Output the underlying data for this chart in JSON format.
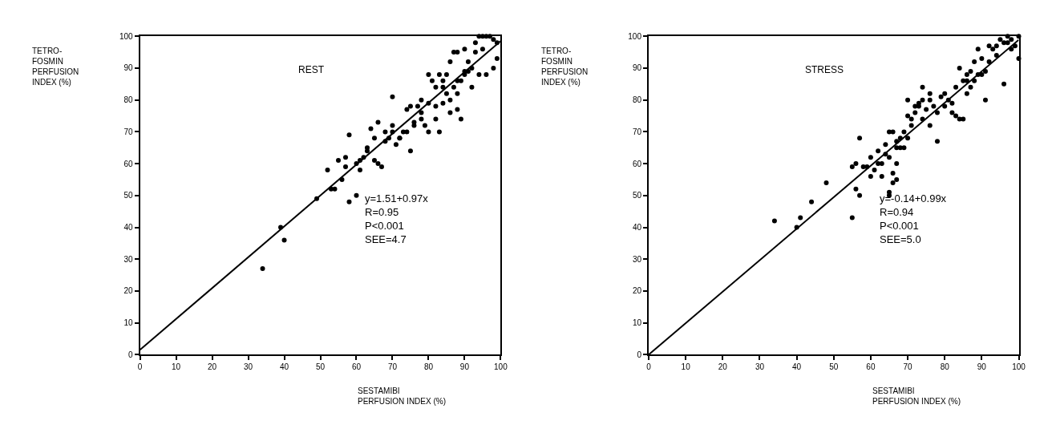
{
  "chart_data": [
    {
      "type": "scatter",
      "title": "REST",
      "xlabel": "SESTAMIBI\nPERFUSION INDEX (%)",
      "ylabel": "TETRO-\nFOSMIN\nPERFUSION\nINDEX (%)",
      "xlim": [
        0,
        100
      ],
      "ylim": [
        0,
        100
      ],
      "xticks": [
        0,
        10,
        20,
        30,
        40,
        50,
        60,
        70,
        80,
        90,
        100
      ],
      "yticks": [
        0,
        10,
        20,
        30,
        40,
        50,
        60,
        70,
        80,
        90,
        100
      ],
      "marker": "circle",
      "annotations": [
        "y=1.51+0.97x",
        "R=0.95",
        "P<0.001",
        "SEE=4.7"
      ],
      "series": [
        {
          "color": "#000000",
          "x": [
            34,
            39,
            40,
            49,
            53,
            58,
            60,
            55,
            52,
            57,
            58,
            61,
            63,
            65,
            66,
            67,
            68,
            69,
            70,
            71,
            72,
            73,
            74,
            75,
            76,
            77,
            78,
            79,
            80,
            70,
            64,
            62,
            66,
            68,
            74,
            76,
            78,
            80,
            81,
            82,
            83,
            84,
            85,
            86,
            87,
            88,
            89,
            90,
            91,
            92,
            86,
            87,
            88,
            90,
            91,
            93,
            94,
            95,
            96,
            97,
            98,
            99,
            96,
            94,
            85,
            84,
            82,
            80,
            78,
            72,
            70,
            65,
            63,
            60,
            56,
            54,
            61,
            57,
            82,
            86,
            84,
            88,
            89,
            92,
            75,
            83,
            88,
            90,
            93,
            95,
            98,
            99
          ],
          "values": [
            27,
            40,
            36,
            49,
            52,
            48,
            50,
            61,
            58,
            62,
            69,
            61,
            65,
            61,
            60,
            59,
            70,
            68,
            70,
            66,
            68,
            70,
            77,
            64,
            72,
            78,
            74,
            72,
            79,
            81,
            71,
            62,
            73,
            67,
            70,
            73,
            80,
            88,
            86,
            84,
            88,
            86,
            82,
            80,
            84,
            86,
            74,
            88,
            89,
            90,
            92,
            95,
            95,
            96,
            92,
            98,
            100,
            100,
            100,
            100,
            90,
            93,
            88,
            88,
            88,
            84,
            78,
            70,
            76,
            68,
            72,
            68,
            64,
            60,
            55,
            52,
            58,
            59,
            74,
            76,
            79,
            82,
            86,
            84,
            78,
            70,
            77,
            89,
            95,
            96,
            99,
            98
          ]
        },
        {
          "type": "line",
          "color": "#000000",
          "x": [
            0,
            100
          ],
          "values": [
            1.5,
            98.5
          ],
          "marker": "none",
          "line_style": "solid"
        }
      ]
    },
    {
      "type": "scatter",
      "title": "STRESS",
      "xlabel": "SESTAMIBI\nPERFUSION INDEX (%)",
      "ylabel": "TETRO-\nFOSMIN\nPERFUSION\nINDEX (%)",
      "xlim": [
        0,
        100
      ],
      "ylim": [
        0,
        100
      ],
      "xticks": [
        0,
        10,
        20,
        30,
        40,
        50,
        60,
        70,
        80,
        90,
        100
      ],
      "yticks": [
        0,
        10,
        20,
        30,
        40,
        50,
        60,
        70,
        80,
        90,
        100
      ],
      "marker": "circle",
      "annotations": [
        "y=-0.14+0.99x",
        "R=0.94",
        "P<0.001",
        "SEE=5.0"
      ],
      "series": [
        {
          "color": "#000000",
          "x": [
            34,
            40,
            41,
            44,
            48,
            55,
            56,
            57,
            55,
            56,
            57,
            58,
            59,
            60,
            61,
            62,
            63,
            63,
            64,
            65,
            65,
            65,
            66,
            66,
            67,
            67,
            68,
            64,
            65,
            66,
            67,
            68,
            69,
            70,
            70,
            71,
            72,
            72,
            73,
            74,
            74,
            75,
            76,
            76,
            77,
            78,
            78,
            80,
            80,
            81,
            82,
            82,
            83,
            83,
            84,
            85,
            84,
            85,
            86,
            86,
            87,
            88,
            88,
            89,
            90,
            90,
            89,
            91,
            92,
            93,
            94,
            95,
            96,
            97,
            98,
            99,
            100,
            100,
            96,
            91,
            92,
            94,
            97,
            98,
            87,
            86,
            79,
            76,
            74,
            69,
            70,
            71,
            73,
            60,
            62,
            67
          ],
          "values": [
            42,
            40,
            43,
            48,
            54,
            43,
            52,
            50,
            59,
            60,
            68,
            59,
            59,
            56,
            58,
            64,
            56,
            60,
            66,
            62,
            50,
            51,
            54,
            57,
            55,
            60,
            65,
            63,
            70,
            70,
            67,
            68,
            65,
            68,
            80,
            72,
            78,
            76,
            79,
            84,
            74,
            77,
            80,
            72,
            78,
            67,
            76,
            78,
            82,
            80,
            79,
            76,
            84,
            75,
            74,
            74,
            90,
            86,
            86,
            88,
            89,
            86,
            92,
            88,
            88,
            93,
            96,
            89,
            92,
            96,
            97,
            99,
            98,
            98,
            96,
            97,
            100,
            93,
            85,
            80,
            97,
            94,
            100,
            99,
            84,
            82,
            81,
            82,
            80,
            70,
            75,
            74,
            78,
            62,
            60,
            65
          ]
        },
        {
          "type": "line",
          "color": "#000000",
          "x": [
            0,
            100
          ],
          "values": [
            0,
            98.9
          ],
          "marker": "none",
          "line_style": "solid"
        }
      ]
    }
  ]
}
